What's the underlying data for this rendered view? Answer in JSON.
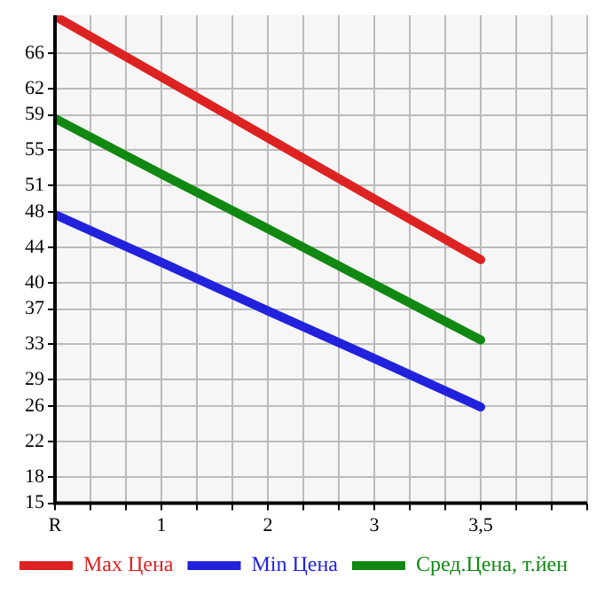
{
  "chart_data": {
    "type": "line",
    "categories": [
      "R",
      "1",
      "2",
      "3",
      "3,5",
      null
    ],
    "series": [
      {
        "name": "Max Цена",
        "color": "#dd2222",
        "values": [
          70.2,
          63.3,
          56.4,
          49.5,
          42.6,
          null
        ]
      },
      {
        "name": "Min Цена",
        "color": "#2222dd",
        "values": [
          47.7,
          42.3,
          36.8,
          31.4,
          25.9,
          null
        ]
      },
      {
        "name": "Сред.Цена, т.йен",
        "color": "#118811",
        "values": [
          58.6,
          52.3,
          46.1,
          39.8,
          33.5,
          null
        ]
      }
    ],
    "ylim": [
      15,
      70.3
    ],
    "yticks": [
      15,
      18,
      22,
      26,
      29,
      33,
      37,
      40,
      44,
      48,
      51,
      55,
      59,
      62,
      66
    ],
    "grid": true,
    "legend": "bottom",
    "marker": "none",
    "line_style": "solid"
  }
}
